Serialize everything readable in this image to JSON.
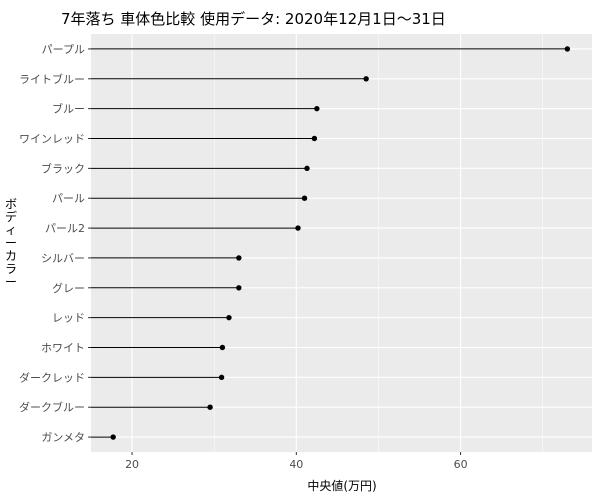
{
  "chart_data": {
    "type": "lollipop",
    "title": "7年落ち 車体色比較 使用データ: 2020年12月1日～31日",
    "xlabel": "中央値(万円)",
    "ylabel": "ボディーカラー",
    "xlim": [
      15,
      76
    ],
    "x_ticks": [
      20,
      40,
      60
    ],
    "grid": true,
    "background": "#ebebeb",
    "gridline_color": "#ffffff",
    "point_color": "#000000",
    "categories": [
      "パープル",
      "ライトブルー",
      "ブルー",
      "ワインレッド",
      "ブラック",
      "パール",
      "パール2",
      "シルバー",
      "グレー",
      "レッド",
      "ホワイト",
      "ダークレッド",
      "ダークブルー",
      "ガンメタ"
    ],
    "values": [
      73.0,
      48.5,
      42.5,
      42.2,
      41.3,
      41.0,
      40.2,
      33.0,
      33.0,
      31.8,
      31.0,
      30.9,
      29.5,
      17.7
    ]
  }
}
